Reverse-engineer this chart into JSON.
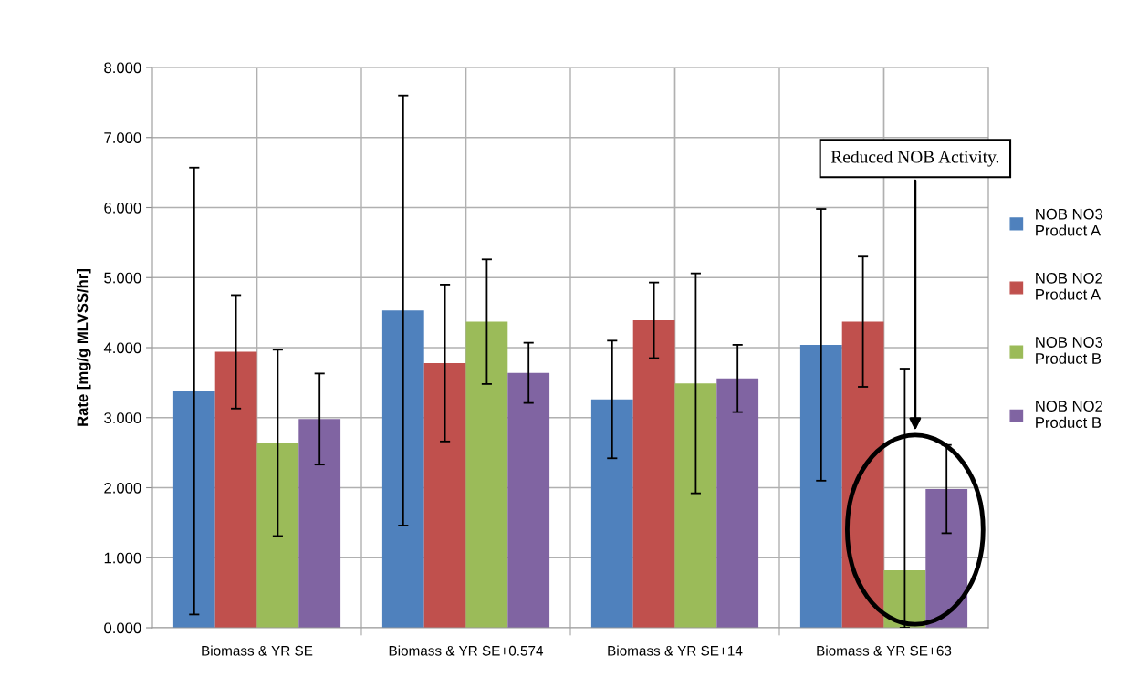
{
  "chart_data": {
    "type": "bar",
    "ylabel": "Rate [mg/g MLVSS/hr]",
    "categories": [
      "Biomass & YR SE",
      "Biomass & YR SE+0.574",
      "Biomass & YR SE+14",
      "Biomass & YR SE+63"
    ],
    "series": [
      {
        "name": "NOB NO3 Product A",
        "color": "#4f81bd",
        "values": [
          3.38,
          4.53,
          3.26,
          4.04
        ],
        "errors": [
          3.19,
          3.07,
          0.84,
          1.94
        ]
      },
      {
        "name": "NOB NO2 Product A",
        "color": "#c0504d",
        "values": [
          3.94,
          3.78,
          4.39,
          4.37
        ],
        "errors": [
          0.81,
          1.12,
          0.54,
          0.93
        ]
      },
      {
        "name": "NOB NO3 Product B",
        "color": "#9bbb59",
        "values": [
          2.64,
          4.37,
          3.49,
          0.82
        ],
        "errors": [
          1.33,
          0.89,
          1.57,
          [
            0,
            3.7
          ]
        ]
      },
      {
        "name": "NOB NO2 Product B",
        "color": "#8064a2",
        "values": [
          2.98,
          3.64,
          3.56,
          1.98
        ],
        "errors": [
          0.65,
          0.43,
          0.48,
          0.63
        ]
      }
    ],
    "ylim": [
      0,
      8
    ],
    "yticks": [
      {
        "value": 0,
        "label": "0.000"
      },
      {
        "value": 1,
        "label": "1.000"
      },
      {
        "value": 2,
        "label": "2.000"
      },
      {
        "value": 3,
        "label": "3.000"
      },
      {
        "value": 4,
        "label": "4.000"
      },
      {
        "value": 5,
        "label": "5.000"
      },
      {
        "value": 6,
        "label": "6.000"
      },
      {
        "value": 7,
        "label": "7.000"
      },
      {
        "value": 8,
        "label": "8.000"
      }
    ],
    "grid": true,
    "legend": "right",
    "annotations": [
      "Reduced NOB Activity."
    ]
  }
}
